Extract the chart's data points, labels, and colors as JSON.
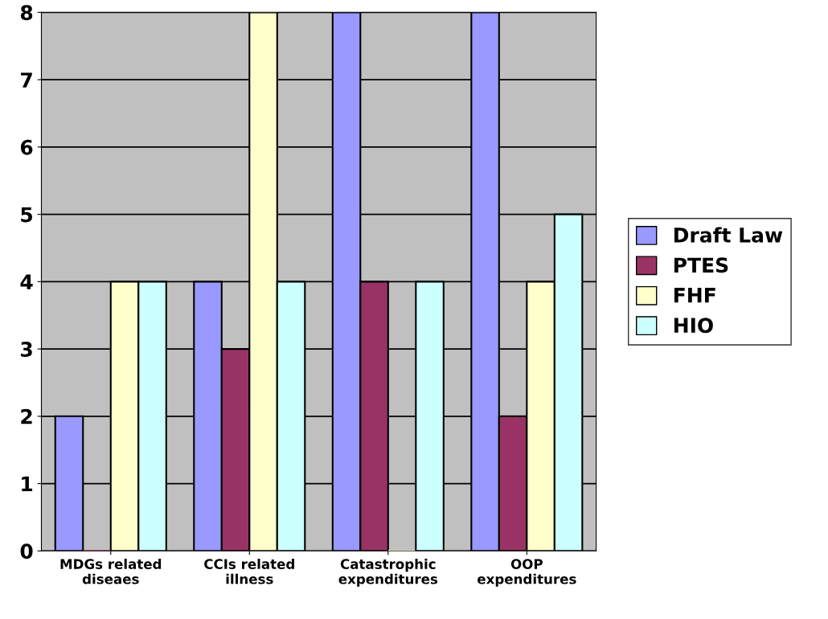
{
  "chart_data": {
    "type": "bar",
    "categories": [
      "MDGs related\ndiseaes",
      "CCIs related\nillness",
      "Catastrophic\nexpenditures",
      "OOP\nexpenditures"
    ],
    "series": [
      {
        "name": "Draft Law",
        "color": "#9999ff",
        "values": [
          2,
          4,
          8,
          8
        ]
      },
      {
        "name": "PTES",
        "color": "#993366",
        "values": [
          0,
          3,
          4,
          2
        ]
      },
      {
        "name": "FHF",
        "color": "#ffffcc",
        "values": [
          4,
          8,
          0,
          4
        ]
      },
      {
        "name": "HIO",
        "color": "#ccffff",
        "values": [
          4,
          4,
          4,
          5
        ]
      }
    ],
    "ylim": [
      0,
      8
    ],
    "yticks": [
      0,
      1,
      2,
      3,
      4,
      5,
      6,
      7,
      8
    ],
    "grid": "y",
    "legend": "right"
  }
}
